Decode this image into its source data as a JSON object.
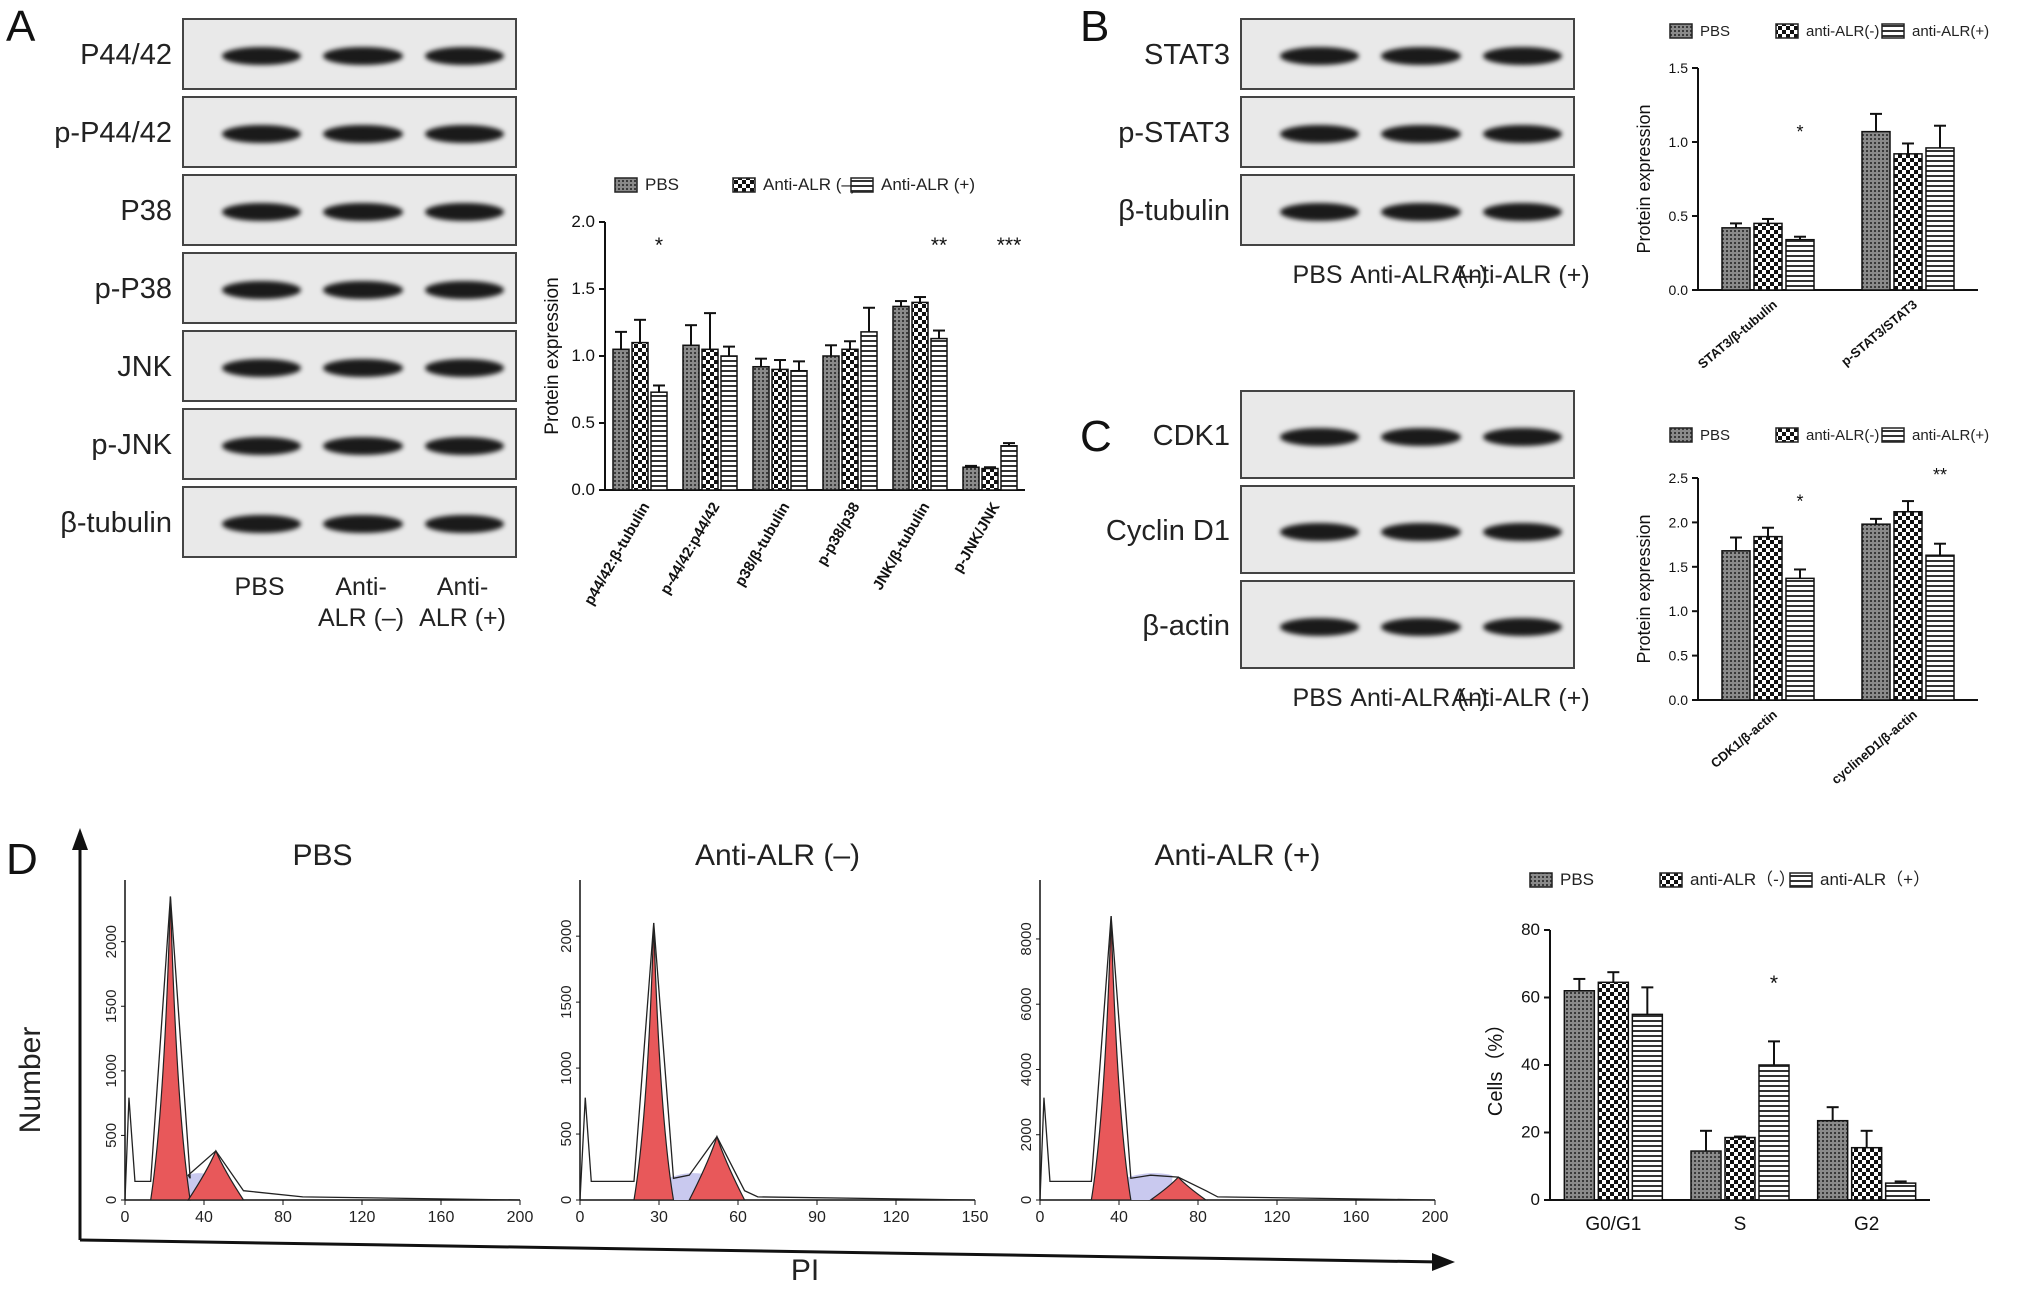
{
  "panels": {
    "A": {
      "label": "A",
      "blot_rows": [
        "P44/42",
        "p-P44/42",
        "P38",
        "p-P38",
        "JNK",
        "p-JNK",
        "β-tubulin"
      ],
      "lanes": [
        "PBS",
        "Anti-\nALR (–)",
        "Anti-\nALR (+)"
      ],
      "chart": {
        "type": "bar",
        "ylabel": "Protein expression",
        "ylim": [
          0,
          2.0
        ],
        "yticks": [
          "0.0",
          "0.5",
          "1.0",
          "1.5",
          "2.0"
        ],
        "legend": [
          "PBS",
          "Anti-ALR (–)",
          "Anti-ALR (+)"
        ],
        "categories": [
          "p44/42:β-tubulin",
          "p-44/42:p44/42",
          "p38/β-tubulin",
          "p-p38/p38",
          "JNK/β-tubulin",
          "p-JNK/JNK"
        ],
        "series": [
          {
            "name": "PBS",
            "values": [
              1.05,
              1.08,
              0.92,
              1.0,
              1.37,
              0.17
            ],
            "errors": [
              0.13,
              0.15,
              0.06,
              0.08,
              0.04,
              0.01
            ]
          },
          {
            "name": "Anti-ALR (–)",
            "values": [
              1.1,
              1.05,
              0.9,
              1.05,
              1.4,
              0.16
            ],
            "errors": [
              0.17,
              0.27,
              0.07,
              0.06,
              0.04,
              0.01
            ]
          },
          {
            "name": "Anti-ALR (+)",
            "values": [
              0.73,
              1.0,
              0.89,
              1.18,
              1.13,
              0.33
            ],
            "errors": [
              0.05,
              0.07,
              0.07,
              0.18,
              0.06,
              0.02
            ]
          }
        ],
        "annotations": [
          {
            "category": 0,
            "text": "*"
          },
          {
            "category": 4,
            "text": "**"
          },
          {
            "category": 5,
            "text": "***"
          }
        ]
      }
    },
    "B": {
      "label": "B",
      "blot_rows": [
        "STAT3",
        "p-STAT3",
        "β-tubulin"
      ],
      "lanes": [
        "PBS",
        "Anti-ALR (–)",
        "Anti-ALR (+)"
      ],
      "chart": {
        "type": "bar",
        "ylabel": "Protein expression",
        "ylim": [
          0,
          1.5
        ],
        "yticks": [
          "0.0",
          "0.5",
          "1.0",
          "1.5"
        ],
        "legend": [
          "PBS",
          "anti-ALR(-)",
          "anti-ALR(+)"
        ],
        "categories": [
          "STAT3/β-tubulin",
          "p-STAT3/STAT3"
        ],
        "series": [
          {
            "name": "PBS",
            "values": [
              0.42,
              1.07
            ],
            "errors": [
              0.03,
              0.12
            ]
          },
          {
            "name": "anti-ALR(-)",
            "values": [
              0.45,
              0.92
            ],
            "errors": [
              0.03,
              0.07
            ]
          },
          {
            "name": "anti-ALR(+)",
            "values": [
              0.34,
              0.96
            ],
            "errors": [
              0.02,
              0.15
            ]
          }
        ],
        "annotations": [
          {
            "category": 0,
            "text": "*"
          }
        ]
      }
    },
    "C": {
      "label": "C",
      "blot_rows": [
        "CDK1",
        "Cyclin D1",
        "β-actin"
      ],
      "lanes": [
        "PBS",
        "Anti-ALR (–)",
        "Anti-ALR (+)"
      ],
      "chart": {
        "type": "bar",
        "ylabel": "Protein expression",
        "ylim": [
          0,
          2.5
        ],
        "yticks": [
          "0.0",
          "0.5",
          "1.0",
          "1.5",
          "2.0",
          "2.5"
        ],
        "legend": [
          "PBS",
          "anti-ALR(-)",
          "anti-ALR(+)"
        ],
        "categories": [
          "CDK1/β-actin",
          "cyclineD1/β-actin"
        ],
        "series": [
          {
            "name": "PBS",
            "values": [
              1.68,
              1.98
            ],
            "errors": [
              0.15,
              0.06
            ]
          },
          {
            "name": "anti-ALR(-)",
            "values": [
              1.84,
              2.12
            ],
            "errors": [
              0.1,
              0.12
            ]
          },
          {
            "name": "anti-ALR(+)",
            "values": [
              1.37,
              1.63
            ],
            "errors": [
              0.1,
              0.13
            ]
          }
        ],
        "annotations": [
          {
            "category": 0,
            "text": "*"
          },
          {
            "category": 1,
            "text": "**"
          }
        ]
      }
    },
    "D": {
      "label": "D",
      "axis_y": "Number",
      "axis_x": "PI",
      "histograms": [
        {
          "title": "PBS",
          "yticks": [
            "0",
            "500",
            "1000",
            "1500",
            "2000"
          ],
          "ymax": 2400,
          "xticks": [
            "0",
            "40",
            "80",
            "120",
            "160",
            "200"
          ],
          "xmax": 200,
          "peak1_x": 23,
          "peak1_h": 2350,
          "peak2_x": 46,
          "peak2_h": 380
        },
        {
          "title": "Anti-ALR (–)",
          "yticks": [
            "0",
            "500",
            "1000",
            "1500",
            "2000"
          ],
          "ymax": 2350,
          "xticks": [
            "0",
            "30",
            "60",
            "90",
            "120",
            "150"
          ],
          "xmax": 150,
          "peak1_x": 28,
          "peak1_h": 2100,
          "peak2_x": 52,
          "peak2_h": 480
        },
        {
          "title": "Anti-ALR (+)",
          "yticks": [
            "0",
            "2000",
            "4000",
            "6000",
            "8000"
          ],
          "ymax": 9500,
          "xticks": [
            "0",
            "40",
            "80",
            "120",
            "160",
            "200"
          ],
          "xmax": 200,
          "peak1_x": 36,
          "peak1_h": 8700,
          "peak2_x": 70,
          "peak2_h": 700
        }
      ],
      "chart": {
        "type": "bar",
        "ylabel": "Cells（%）",
        "ylim": [
          0,
          80
        ],
        "yticks": [
          "0",
          "20",
          "40",
          "60",
          "80"
        ],
        "legend": [
          "PBS",
          "anti-ALR（-）",
          "anti-ALR（+）"
        ],
        "categories": [
          "G0/G1",
          "S",
          "G2"
        ],
        "series": [
          {
            "name": "PBS",
            "values": [
              62,
              14.5,
              23.5
            ],
            "errors": [
              3.5,
              6,
              4
            ]
          },
          {
            "name": "anti-ALR（-）",
            "values": [
              64.5,
              18.5,
              15.5
            ],
            "errors": [
              3,
              0.3,
              5
            ]
          },
          {
            "name": "anti-ALR（+）",
            "values": [
              55,
              40,
              5
            ],
            "errors": [
              8,
              7,
              0.5
            ]
          }
        ],
        "annotations": [
          {
            "category": 1,
            "text": "*"
          }
        ]
      }
    }
  }
}
